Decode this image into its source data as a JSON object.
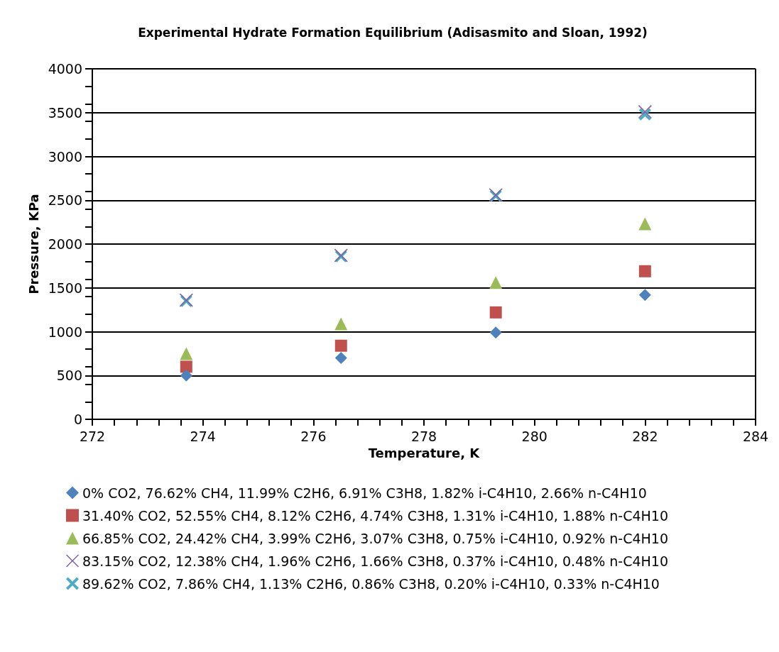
{
  "chart_data": {
    "type": "scatter",
    "title": "Experimental Hydrate Formation Equilibrium (Adisasmito and Sloan, 1992)",
    "xlabel": "Temperature, K",
    "ylabel": "Pressure, KPa",
    "x": [
      273.7,
      276.5,
      279.3,
      282.0
    ],
    "series": [
      {
        "name": "0% CO2, 76.62% CH4, 11.99% C2H6, 6.91% C3H8, 1.82% i-C4H10, 2.66% n-C4H10",
        "color": "#4f81bd",
        "marker": "diamond",
        "values": [
          500,
          700,
          990,
          1420
        ]
      },
      {
        "name": "31.40% CO2, 52.55% CH4, 8.12% C2H6, 4.74% C3H8, 1.31% i-C4H10, 1.88% n-C4H10",
        "color": "#c0504d",
        "marker": "square",
        "values": [
          600,
          840,
          1220,
          1690
        ]
      },
      {
        "name": "66.85% CO2, 24.42% CH4, 3.99% C2H6, 3.07% C3H8, 0.75% i-C4H10, 0.92% n-C4H10",
        "color": "#9bbb59",
        "marker": "triangle",
        "values": [
          750,
          1090,
          1560,
          2230
        ]
      },
      {
        "name": "83.15% CO2, 12.38% CH4, 1.96% C2H6, 1.66% C3H8, 0.37% i-C4H10, 0.48% n-C4H10",
        "color": "#8064a2",
        "marker": "cross",
        "values": [
          1360,
          1870,
          2560,
          3510
        ]
      },
      {
        "name": "89.62% CO2, 7.86% CH4, 1.13% C2H6, 0.86% C3H8, 0.20% i-C4H10, 0.33% n-C4H10",
        "color": "#4bacc6",
        "marker": "cross",
        "values": [
          1350,
          1860,
          2550,
          3480
        ]
      }
    ],
    "xlim": [
      272,
      284
    ],
    "xticks": [
      272,
      274,
      276,
      278,
      280,
      282,
      284
    ],
    "ylim": [
      0,
      4000
    ],
    "yticks": [
      0,
      500,
      1000,
      1500,
      2000,
      2500,
      3000,
      3500,
      4000
    ],
    "grid": "y",
    "legend": "bottom"
  }
}
